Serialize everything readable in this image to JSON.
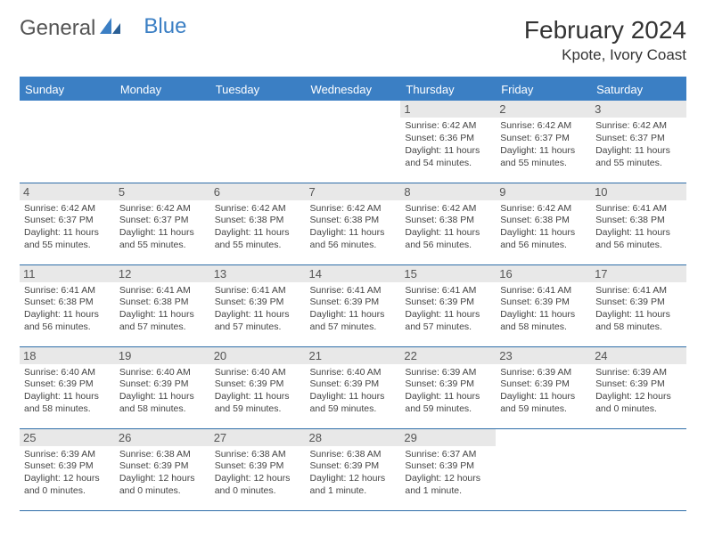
{
  "logo": {
    "word1": "General",
    "word2": "Blue"
  },
  "title": {
    "month": "February 2024",
    "location": "Kpote, Ivory Coast"
  },
  "calendar": {
    "day_headers": [
      "Sunday",
      "Monday",
      "Tuesday",
      "Wednesday",
      "Thursday",
      "Friday",
      "Saturday"
    ],
    "header_bg": "#3b7fc4",
    "header_fg": "#ffffff",
    "daynum_bg": "#e8e8e8",
    "border_color": "#2e6da8",
    "weeks": [
      [
        {
          "day": ""
        },
        {
          "day": ""
        },
        {
          "day": ""
        },
        {
          "day": ""
        },
        {
          "day": "1",
          "sunrise": "Sunrise: 6:42 AM",
          "sunset": "Sunset: 6:36 PM",
          "daylight": "Daylight: 11 hours and 54 minutes."
        },
        {
          "day": "2",
          "sunrise": "Sunrise: 6:42 AM",
          "sunset": "Sunset: 6:37 PM",
          "daylight": "Daylight: 11 hours and 55 minutes."
        },
        {
          "day": "3",
          "sunrise": "Sunrise: 6:42 AM",
          "sunset": "Sunset: 6:37 PM",
          "daylight": "Daylight: 11 hours and 55 minutes."
        }
      ],
      [
        {
          "day": "4",
          "sunrise": "Sunrise: 6:42 AM",
          "sunset": "Sunset: 6:37 PM",
          "daylight": "Daylight: 11 hours and 55 minutes."
        },
        {
          "day": "5",
          "sunrise": "Sunrise: 6:42 AM",
          "sunset": "Sunset: 6:37 PM",
          "daylight": "Daylight: 11 hours and 55 minutes."
        },
        {
          "day": "6",
          "sunrise": "Sunrise: 6:42 AM",
          "sunset": "Sunset: 6:38 PM",
          "daylight": "Daylight: 11 hours and 55 minutes."
        },
        {
          "day": "7",
          "sunrise": "Sunrise: 6:42 AM",
          "sunset": "Sunset: 6:38 PM",
          "daylight": "Daylight: 11 hours and 56 minutes."
        },
        {
          "day": "8",
          "sunrise": "Sunrise: 6:42 AM",
          "sunset": "Sunset: 6:38 PM",
          "daylight": "Daylight: 11 hours and 56 minutes."
        },
        {
          "day": "9",
          "sunrise": "Sunrise: 6:42 AM",
          "sunset": "Sunset: 6:38 PM",
          "daylight": "Daylight: 11 hours and 56 minutes."
        },
        {
          "day": "10",
          "sunrise": "Sunrise: 6:41 AM",
          "sunset": "Sunset: 6:38 PM",
          "daylight": "Daylight: 11 hours and 56 minutes."
        }
      ],
      [
        {
          "day": "11",
          "sunrise": "Sunrise: 6:41 AM",
          "sunset": "Sunset: 6:38 PM",
          "daylight": "Daylight: 11 hours and 56 minutes."
        },
        {
          "day": "12",
          "sunrise": "Sunrise: 6:41 AM",
          "sunset": "Sunset: 6:38 PM",
          "daylight": "Daylight: 11 hours and 57 minutes."
        },
        {
          "day": "13",
          "sunrise": "Sunrise: 6:41 AM",
          "sunset": "Sunset: 6:39 PM",
          "daylight": "Daylight: 11 hours and 57 minutes."
        },
        {
          "day": "14",
          "sunrise": "Sunrise: 6:41 AM",
          "sunset": "Sunset: 6:39 PM",
          "daylight": "Daylight: 11 hours and 57 minutes."
        },
        {
          "day": "15",
          "sunrise": "Sunrise: 6:41 AM",
          "sunset": "Sunset: 6:39 PM",
          "daylight": "Daylight: 11 hours and 57 minutes."
        },
        {
          "day": "16",
          "sunrise": "Sunrise: 6:41 AM",
          "sunset": "Sunset: 6:39 PM",
          "daylight": "Daylight: 11 hours and 58 minutes."
        },
        {
          "day": "17",
          "sunrise": "Sunrise: 6:41 AM",
          "sunset": "Sunset: 6:39 PM",
          "daylight": "Daylight: 11 hours and 58 minutes."
        }
      ],
      [
        {
          "day": "18",
          "sunrise": "Sunrise: 6:40 AM",
          "sunset": "Sunset: 6:39 PM",
          "daylight": "Daylight: 11 hours and 58 minutes."
        },
        {
          "day": "19",
          "sunrise": "Sunrise: 6:40 AM",
          "sunset": "Sunset: 6:39 PM",
          "daylight": "Daylight: 11 hours and 58 minutes."
        },
        {
          "day": "20",
          "sunrise": "Sunrise: 6:40 AM",
          "sunset": "Sunset: 6:39 PM",
          "daylight": "Daylight: 11 hours and 59 minutes."
        },
        {
          "day": "21",
          "sunrise": "Sunrise: 6:40 AM",
          "sunset": "Sunset: 6:39 PM",
          "daylight": "Daylight: 11 hours and 59 minutes."
        },
        {
          "day": "22",
          "sunrise": "Sunrise: 6:39 AM",
          "sunset": "Sunset: 6:39 PM",
          "daylight": "Daylight: 11 hours and 59 minutes."
        },
        {
          "day": "23",
          "sunrise": "Sunrise: 6:39 AM",
          "sunset": "Sunset: 6:39 PM",
          "daylight": "Daylight: 11 hours and 59 minutes."
        },
        {
          "day": "24",
          "sunrise": "Sunrise: 6:39 AM",
          "sunset": "Sunset: 6:39 PM",
          "daylight": "Daylight: 12 hours and 0 minutes."
        }
      ],
      [
        {
          "day": "25",
          "sunrise": "Sunrise: 6:39 AM",
          "sunset": "Sunset: 6:39 PM",
          "daylight": "Daylight: 12 hours and 0 minutes."
        },
        {
          "day": "26",
          "sunrise": "Sunrise: 6:38 AM",
          "sunset": "Sunset: 6:39 PM",
          "daylight": "Daylight: 12 hours and 0 minutes."
        },
        {
          "day": "27",
          "sunrise": "Sunrise: 6:38 AM",
          "sunset": "Sunset: 6:39 PM",
          "daylight": "Daylight: 12 hours and 0 minutes."
        },
        {
          "day": "28",
          "sunrise": "Sunrise: 6:38 AM",
          "sunset": "Sunset: 6:39 PM",
          "daylight": "Daylight: 12 hours and 1 minute."
        },
        {
          "day": "29",
          "sunrise": "Sunrise: 6:37 AM",
          "sunset": "Sunset: 6:39 PM",
          "daylight": "Daylight: 12 hours and 1 minute."
        },
        {
          "day": ""
        },
        {
          "day": ""
        }
      ]
    ]
  }
}
